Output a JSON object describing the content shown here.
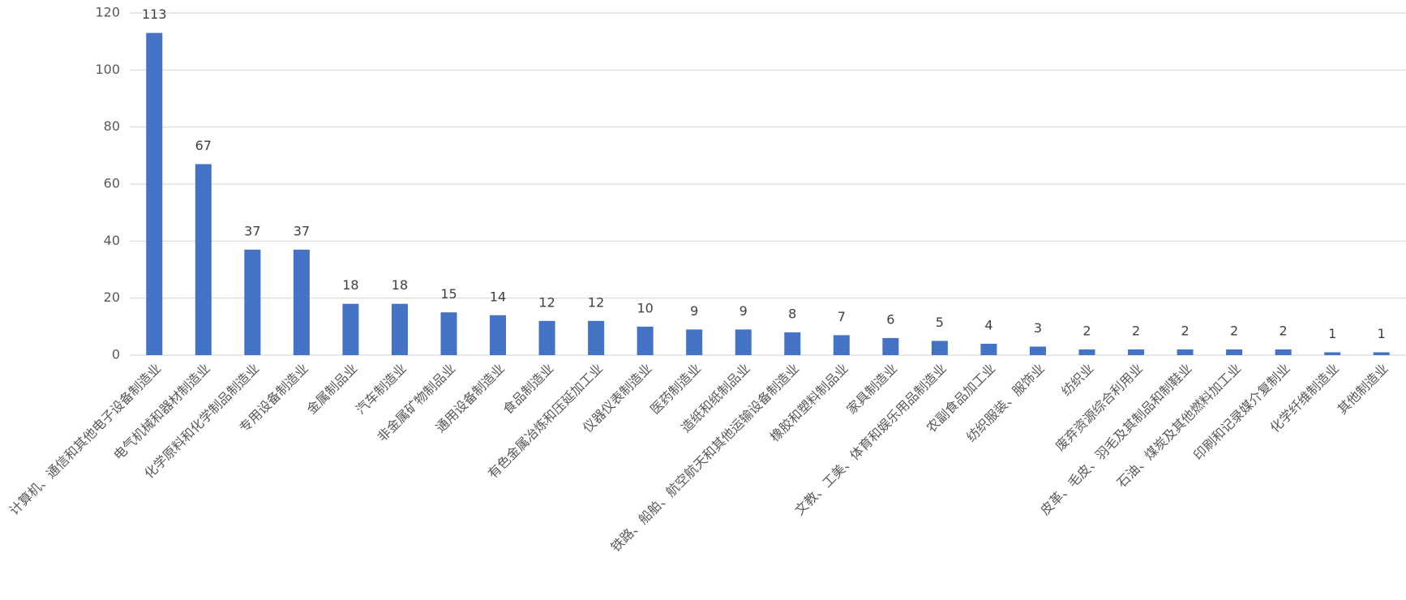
{
  "chart_data": {
    "type": "bar",
    "categories": [
      "计算机、通信和其他电子设备制造业",
      "电气机械和器材制造业",
      "化学原料和化学制品制造业",
      "专用设备制造业",
      "金属制品业",
      "汽车制造业",
      "非金属矿物制品业",
      "通用设备制造业",
      "食品制造业",
      "有色金属冶炼和压延加工业",
      "仪器仪表制造业",
      "医药制造业",
      "造纸和纸制品业",
      "铁路、船舶、航空航天和其他运输设备制造业",
      "橡胶和塑料制品业",
      "家具制造业",
      "文教、工美、体育和娱乐用品制造业",
      "农副食品加工业",
      "纺织服装、服饰业",
      "纺织业",
      "废弃资源综合利用业",
      "皮革、毛皮、羽毛及其制品和制鞋业",
      "石油、煤炭及其他燃料加工业",
      "印刷和记录媒介复制业",
      "化学纤维制造业",
      "其他制造业"
    ],
    "values": [
      113,
      67,
      37,
      37,
      18,
      18,
      15,
      14,
      12,
      12,
      10,
      9,
      9,
      8,
      7,
      6,
      5,
      4,
      3,
      2,
      2,
      2,
      2,
      2,
      1,
      1
    ],
    "color": "#4472c4",
    "ylim": [
      0,
      120
    ],
    "yticks": [
      0,
      20,
      40,
      60,
      80,
      100,
      120
    ],
    "grid": true
  }
}
